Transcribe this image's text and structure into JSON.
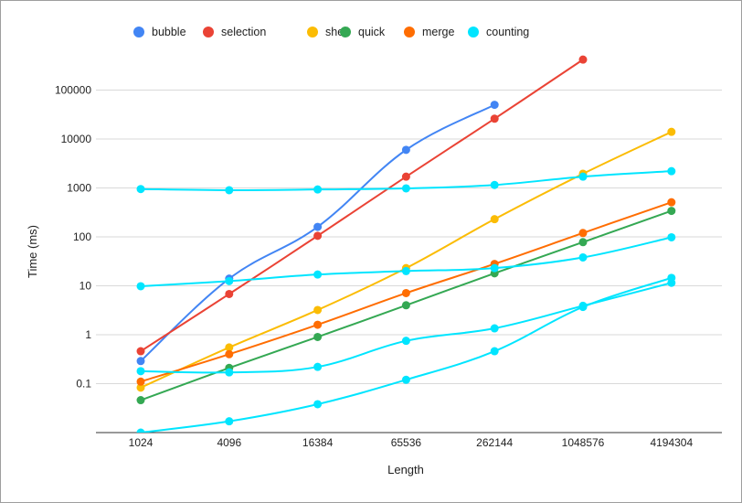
{
  "chart_data": {
    "type": "line",
    "title": "",
    "xlabel": "Length",
    "ylabel": "Time (ms)",
    "y_scale": "log",
    "ylim": [
      0.01,
      400000
    ],
    "grid": true,
    "legend_position": "top-left",
    "categories": [
      "1024",
      "4096",
      "16384",
      "65536",
      "262144",
      "1048576",
      "4194304"
    ],
    "y_ticks": [
      "0.1",
      "1",
      "10",
      "100",
      "1000",
      "10000",
      "100000"
    ],
    "legend": [
      {
        "name": "bubble",
        "color": "#4285f4"
      },
      {
        "name": "selection",
        "color": "#ea4335"
      },
      {
        "name": "shell",
        "color": "#fbbc04"
      },
      {
        "name": "quick",
        "color": "#34a853"
      },
      {
        "name": "merge",
        "color": "#ff6d01"
      },
      {
        "name": "counting",
        "color": "#00e5ff"
      }
    ],
    "series": [
      {
        "name": "bubble",
        "color": "#4285f4",
        "values": [
          0.29,
          14,
          160,
          6000,
          50000,
          null,
          null
        ]
      },
      {
        "name": "selection",
        "color": "#ea4335",
        "values": [
          0.46,
          6.8,
          105,
          1700,
          26000,
          420000,
          null
        ]
      },
      {
        "name": "shell",
        "color": "#fbbc04",
        "values": [
          0.083,
          0.55,
          3.2,
          23,
          230,
          1950,
          14000
        ]
      },
      {
        "name": "quick",
        "color": "#34a853",
        "values": [
          0.046,
          0.21,
          0.9,
          4,
          18,
          78,
          340
        ]
      },
      {
        "name": "merge",
        "color": "#ff6d01",
        "values": [
          0.11,
          0.4,
          1.6,
          7.1,
          28,
          120,
          510
        ]
      },
      {
        "color": "#00e5ff",
        "values": [
          950,
          900,
          930,
          980,
          1150,
          1700,
          2200
        ]
      },
      {
        "color": "#00e5ff",
        "values": [
          9.8,
          12.5,
          17,
          20,
          23,
          38,
          98
        ]
      },
      {
        "color": "#00e5ff",
        "values": [
          0.18,
          0.17,
          0.22,
          0.75,
          1.35,
          3.9,
          11.5
        ]
      },
      {
        "color": "#00e5ff",
        "values": [
          0.01,
          0.017,
          0.038,
          0.12,
          0.46,
          3.7,
          14.5
        ]
      }
    ]
  }
}
